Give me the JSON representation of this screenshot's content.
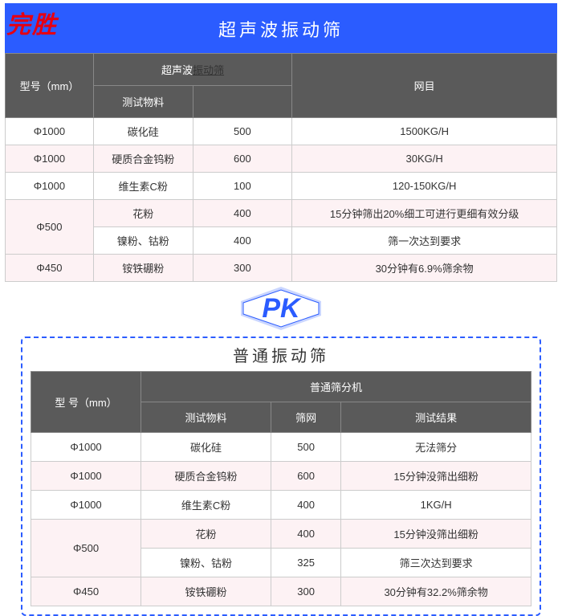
{
  "stamp": "完胜",
  "top_title": "超声波振动筛",
  "pk_label": "PK",
  "bottom_title": "普通振动筛",
  "table1": {
    "col_width_pct": [
      16,
      18,
      18,
      48
    ],
    "header": {
      "model": "型号（mm）",
      "group1": "超声波",
      "group1_link": "振动筛",
      "mesh": "网目",
      "sub_material": "测试物料"
    },
    "rows": [
      {
        "model": "Φ1000",
        "material": "碳化硅",
        "mesh": "500",
        "result": "1500KG/H",
        "pink": false,
        "rowspan": 1
      },
      {
        "model": "Φ1000",
        "material": "硬质合金钨粉",
        "mesh": "600",
        "result": "30KG/H",
        "pink": true,
        "rowspan": 1
      },
      {
        "model": "Φ1000",
        "material": "维生素C粉",
        "mesh": "100",
        "result": "120-150KG/H",
        "pink": false,
        "rowspan": 1
      },
      {
        "model": "Φ500",
        "material": "花粉",
        "mesh": "400",
        "result": "15分钟筛出20%细工可进行更细有效分级",
        "pink": true,
        "rowspan": 2
      },
      {
        "model": "",
        "material": "镍粉、钴粉",
        "mesh": "400",
        "result": "筛一次达到要求",
        "pink": false,
        "rowspan": 0
      },
      {
        "model": "Φ450",
        "material": "铵铁硼粉",
        "mesh": "300",
        "result": "30分钟有6.9%筛余物",
        "pink": true,
        "rowspan": 1
      }
    ]
  },
  "table2": {
    "col_width_pct": [
      22,
      26,
      14,
      38
    ],
    "header": {
      "model": "型 号（mm）",
      "group": "普通筛分机",
      "sub_material": "测试物料",
      "sub_mesh": "筛网",
      "sub_result": "测试结果"
    },
    "rows": [
      {
        "model": "Φ1000",
        "material": "碳化硅",
        "mesh": "500",
        "result": "无法筛分",
        "pink": false,
        "rowspan": 1
      },
      {
        "model": "Φ1000",
        "material": "硬质合金钨粉",
        "mesh": "600",
        "result": "15分钟没筛出细粉",
        "pink": true,
        "rowspan": 1
      },
      {
        "model": "Φ1000",
        "material": "维生素C粉",
        "mesh": "400",
        "result": "1KG/H",
        "pink": false,
        "rowspan": 1
      },
      {
        "model": "Φ500",
        "material": "花粉",
        "mesh": "400",
        "result": "15分钟没筛出细粉",
        "pink": true,
        "rowspan": 2
      },
      {
        "model": "",
        "material": "镍粉、钴粉",
        "mesh": "325",
        "result": "筛三次达到要求",
        "pink": false,
        "rowspan": 0
      },
      {
        "model": "Φ450",
        "material": "铵铁硼粉",
        "mesh": "300",
        "result": "30分钟有32.2%筛余物",
        "pink": true,
        "rowspan": 1
      }
    ]
  },
  "colors": {
    "banner_bg": "#2b5cff",
    "header_bg": "#5a5a5a",
    "pink_row": "#fdf2f4",
    "stamp": "#e60012",
    "dash_border": "#2b5cff"
  }
}
